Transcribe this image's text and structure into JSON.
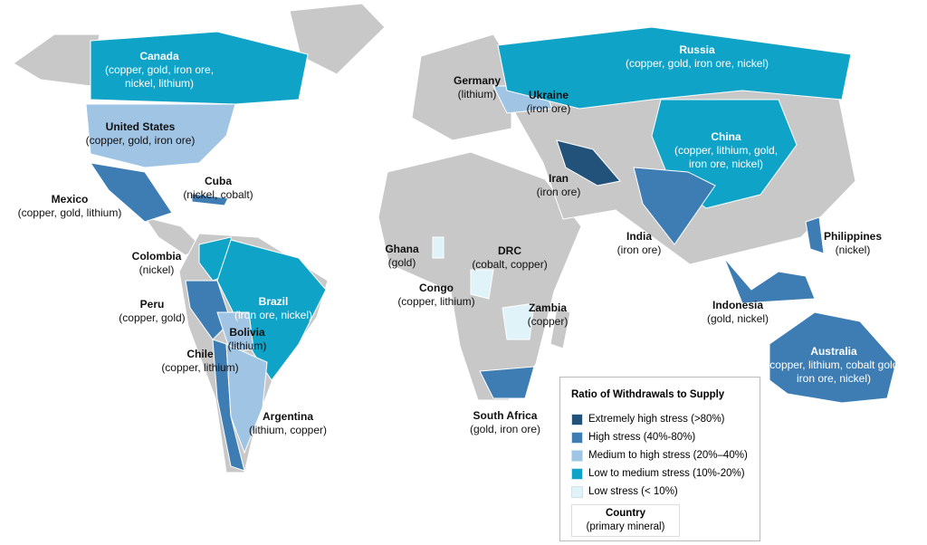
{
  "legend": {
    "title": "Ratio of Withdrawals to Supply",
    "items": [
      {
        "label": "Extremely high stress (>80%)",
        "color": "#22527a"
      },
      {
        "label": "High stress (40%-80%)",
        "color": "#3d7db4"
      },
      {
        "label": "Medium to high stress (20%–40%)",
        "color": "#a0c4e4"
      },
      {
        "label": "Low to medium stress (10%-20%)",
        "color": "#10a3c8"
      },
      {
        "label": "Low stress (< 10%)",
        "color": "#dff3f8"
      }
    ],
    "key": {
      "name": "Country",
      "detail": "(primary mineral)"
    }
  },
  "countries": [
    {
      "name": "Canada",
      "minerals": "(copper, gold, iron ore, nickel, lithium)",
      "stress": 3
    },
    {
      "name": "United States",
      "minerals": "(copper, gold, iron ore)",
      "stress": 2
    },
    {
      "name": "Mexico",
      "minerals": "(copper, gold, lithium)",
      "stress": 1
    },
    {
      "name": "Cuba",
      "minerals": "(nickel, cobalt)",
      "stress": 1
    },
    {
      "name": "Colombia",
      "minerals": "(nickel)",
      "stress": 3
    },
    {
      "name": "Peru",
      "minerals": "(copper, gold)",
      "stress": 1
    },
    {
      "name": "Brazil",
      "minerals": "(iron ore, nickel)",
      "stress": 3
    },
    {
      "name": "Bolivia",
      "minerals": "(lithium)",
      "stress": 2
    },
    {
      "name": "Chile",
      "minerals": "(copper, lithium)",
      "stress": 1
    },
    {
      "name": "Argentina",
      "minerals": "(lithium, copper)",
      "stress": 2
    },
    {
      "name": "Germany",
      "minerals": "(lithium)"
    },
    {
      "name": "Ukraine",
      "minerals": "(iron ore)",
      "stress": 2
    },
    {
      "name": "Russia",
      "minerals": "(copper, gold, iron ore, nickel)",
      "stress": 3
    },
    {
      "name": "China",
      "minerals": "(copper, lithium, gold, iron ore, nickel)",
      "stress": 3
    },
    {
      "name": "Iran",
      "minerals": "(iron ore)",
      "stress": 0
    },
    {
      "name": "India",
      "minerals": "(iron ore)",
      "stress": 1
    },
    {
      "name": "Ghana",
      "minerals": "(gold)",
      "stress": 4
    },
    {
      "name": "DRC",
      "minerals": "(cobalt, copper)"
    },
    {
      "name": "Congo",
      "minerals": "(copper, lithium)",
      "stress": 4
    },
    {
      "name": "Zambia",
      "minerals": "(copper)",
      "stress": 4
    },
    {
      "name": "South Africa",
      "minerals": "(gold, iron ore)",
      "stress": 1
    },
    {
      "name": "Philippines",
      "minerals": "(nickel)",
      "stress": 1
    },
    {
      "name": "Indonesia",
      "minerals": "(gold, nickel)",
      "stress": 1
    },
    {
      "name": "Australia",
      "minerals": "(copper, lithium, cobalt gold, iron ore, nickel)",
      "stress": 1
    }
  ]
}
